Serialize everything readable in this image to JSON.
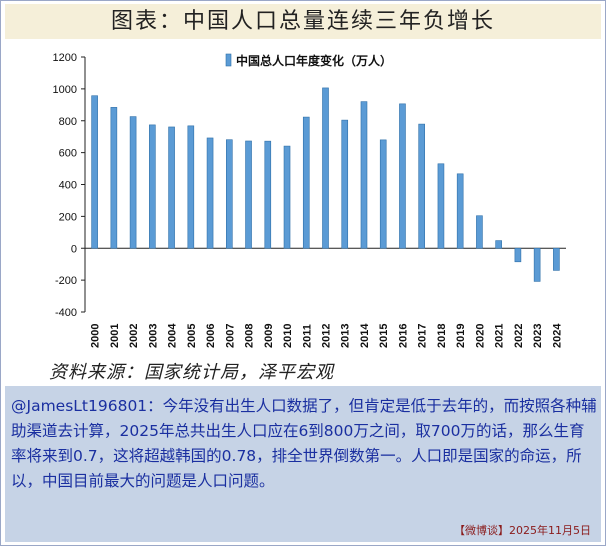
{
  "title": "图表：中国人口总量连续三年负增长",
  "source": "资料来源：国家统计局，泽平宏观",
  "comment": "@JamesLt196801：今年没有出生人口数据了，但肯定是低于去年的，而按照各种辅助渠道去计算，2025年总共出生人口应在6到800万之间，取700万的话，那么生育率将来到0.7，这将超越韩国的0.78，排全世界倒数第一。人口即是国家的命运，所以，中国目前最大的问题是人口问题。",
  "credit": "【微博谈】2025年11月5日",
  "colors": {
    "bar": "#5b9bd5",
    "bar_dark": "#2e6fa8",
    "comment_text": "#1a2fa0",
    "comment_bg": "#c6d3e6",
    "title_bg": "#f5efd9"
  },
  "chart_data": {
    "type": "bar",
    "categories": [
      "2000",
      "2001",
      "2002",
      "2003",
      "2004",
      "2005",
      "2006",
      "2007",
      "2008",
      "2009",
      "2010",
      "2011",
      "2012",
      "2013",
      "2014",
      "2015",
      "2016",
      "2017",
      "2018",
      "2019",
      "2020",
      "2021",
      "2022",
      "2023",
      "2024"
    ],
    "series": [
      {
        "name": "中国总人口年度变化（万人）",
        "values": [
          957,
          884,
          826,
          774,
          761,
          768,
          692,
          681,
          673,
          672,
          641,
          823,
          1006,
          804,
          920,
          680,
          906,
          779,
          530,
          467,
          204,
          48,
          -85,
          -208,
          -139
        ]
      }
    ],
    "ylim": [
      -400,
      1200
    ],
    "yticks": [
      -400,
      -200,
      0,
      200,
      400,
      600,
      800,
      1000,
      1200
    ],
    "legend_position": "top-center",
    "grid": false
  }
}
